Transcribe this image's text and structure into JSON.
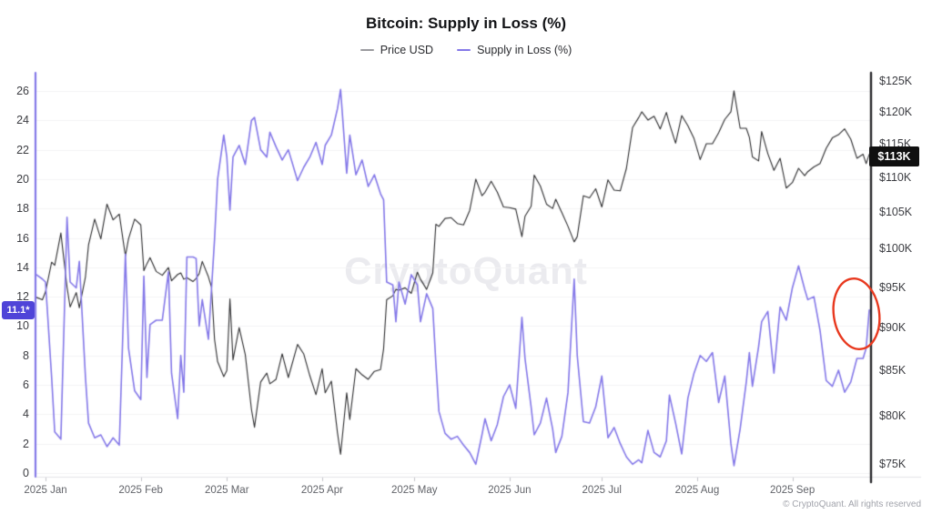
{
  "title": "Bitcoin: Supply in Loss (%)",
  "watermark": "CryptoQuant",
  "footer": "© CryptoQuant. All rights reserved",
  "legend": [
    {
      "label": "Price USD",
      "dash_color": "#9b9b9f"
    },
    {
      "label": "Supply in Loss (%)",
      "dash_color": "#8478e8"
    }
  ],
  "badges": {
    "supply_current": "11.1*",
    "price_current": "$113K",
    "supply_badge_bg": "#4f44d8",
    "price_badge_bg": "#101010"
  },
  "colors": {
    "price_line": "#2e2e30",
    "supply_line": "#8478e8",
    "left_axis_line": "#8478e8",
    "right_axis_line": "#29292c",
    "grid": "#f3f3f5",
    "bottom_axis": "#e3e3e7",
    "tick_mark": "#c4c4ca",
    "annotation_red": "#e8391f"
  },
  "chart_data": {
    "type": "line",
    "title": "Bitcoin: Supply in Loss (%)",
    "legend_position": "top",
    "grid": "horizontal",
    "left_axis": {
      "series": "Supply in Loss (%)",
      "scale": "linear",
      "ticks": [
        0,
        2,
        4,
        6,
        8,
        10,
        12,
        14,
        16,
        18,
        20,
        22,
        24,
        26
      ],
      "range": [
        0,
        27.2
      ]
    },
    "right_axis": {
      "series": "Price USD",
      "scale": "log",
      "ticks_usd_k": [
        75,
        80,
        85,
        90,
        95,
        100,
        105,
        110,
        115,
        120,
        125
      ],
      "tick_format": "$NK",
      "current_label": "$113K"
    },
    "x_ticks": [
      {
        "date": "2025-01-01",
        "label": "2025 Jan"
      },
      {
        "date": "2025-02-01",
        "label": "2025 Feb"
      },
      {
        "date": "2025-03-01",
        "label": "2025 Mar"
      },
      {
        "date": "2025-04-01",
        "label": "2025 Apr"
      },
      {
        "date": "2025-05-01",
        "label": "2025 May"
      },
      {
        "date": "2025-06-01",
        "label": "2025 Jun"
      },
      {
        "date": "2025-07-01",
        "label": "2025 Jul"
      },
      {
        "date": "2025-08-01",
        "label": "2025 Aug"
      },
      {
        "date": "2025-09-01",
        "label": "2025 Sep"
      }
    ],
    "series_meta": [
      {
        "name": "Price USD",
        "axis": "right",
        "color": "#2e2e30",
        "unit": "USD (K)"
      },
      {
        "name": "Supply in Loss (%)",
        "axis": "left",
        "color": "#8478e8",
        "unit": "%",
        "last_value_label": "11.1*"
      }
    ],
    "points_format": [
      "date",
      "price_usd_k",
      "supply_in_loss_pct"
    ],
    "points": [
      [
        "2024-12-29",
        93.7,
        13.5
      ],
      [
        "2024-12-31",
        93.4,
        13.2
      ],
      [
        "2025-01-01",
        94.4,
        13.0
      ],
      [
        "2025-01-03",
        98.2,
        6.5
      ],
      [
        "2025-01-04",
        97.8,
        2.8
      ],
      [
        "2025-01-06",
        102.1,
        2.3
      ],
      [
        "2025-01-08",
        95.0,
        17.4
      ],
      [
        "2025-01-09",
        92.5,
        13.0
      ],
      [
        "2025-01-11",
        94.3,
        12.6
      ],
      [
        "2025-01-12",
        92.4,
        14.4
      ],
      [
        "2025-01-14",
        96.3,
        6.5
      ],
      [
        "2025-01-15",
        100.5,
        3.4
      ],
      [
        "2025-01-17",
        104.0,
        2.4
      ],
      [
        "2025-01-19",
        101.3,
        2.6
      ],
      [
        "2025-01-21",
        106.1,
        1.8
      ],
      [
        "2025-01-23",
        103.9,
        2.4
      ],
      [
        "2025-01-25",
        104.7,
        1.9
      ],
      [
        "2025-01-27",
        99.0,
        14.9
      ],
      [
        "2025-01-28",
        101.3,
        8.5
      ],
      [
        "2025-01-30",
        104.0,
        5.6
      ],
      [
        "2025-02-01",
        103.2,
        5.0
      ],
      [
        "2025-02-02",
        97.1,
        13.4
      ],
      [
        "2025-02-03",
        98.0,
        6.5
      ],
      [
        "2025-02-04",
        98.8,
        10.1
      ],
      [
        "2025-02-06",
        97.0,
        10.4
      ],
      [
        "2025-02-08",
        96.5,
        10.4
      ],
      [
        "2025-02-10",
        97.5,
        13.7
      ],
      [
        "2025-02-11",
        95.8,
        6.8
      ],
      [
        "2025-02-13",
        96.6,
        3.7
      ],
      [
        "2025-02-14",
        96.8,
        8.0
      ],
      [
        "2025-02-15",
        96.0,
        5.5
      ],
      [
        "2025-02-16",
        96.2,
        14.7
      ],
      [
        "2025-02-18",
        95.7,
        14.7
      ],
      [
        "2025-02-19",
        96.1,
        14.6
      ],
      [
        "2025-02-20",
        96.7,
        10.0
      ],
      [
        "2025-02-21",
        98.3,
        11.8
      ],
      [
        "2025-02-23",
        96.3,
        9.1
      ],
      [
        "2025-02-24",
        95.0,
        12.5
      ],
      [
        "2025-02-25",
        88.6,
        15.9
      ],
      [
        "2025-02-26",
        86.0,
        20.0
      ],
      [
        "2025-02-28",
        84.3,
        23.0
      ],
      [
        "2025-03-01",
        85.0,
        21.5
      ],
      [
        "2025-03-02",
        93.5,
        17.9
      ],
      [
        "2025-03-03",
        86.2,
        21.5
      ],
      [
        "2025-03-05",
        90.0,
        22.3
      ],
      [
        "2025-03-07",
        86.8,
        21.0
      ],
      [
        "2025-03-09",
        80.7,
        24.0
      ],
      [
        "2025-03-10",
        78.8,
        24.2
      ],
      [
        "2025-03-12",
        83.7,
        22.0
      ],
      [
        "2025-03-14",
        84.7,
        21.5
      ],
      [
        "2025-03-15",
        83.5,
        23.2
      ],
      [
        "2025-03-17",
        84.0,
        22.2
      ],
      [
        "2025-03-19",
        86.9,
        21.3
      ],
      [
        "2025-03-21",
        84.2,
        22.0
      ],
      [
        "2025-03-24",
        88.0,
        19.9
      ],
      [
        "2025-03-26",
        86.9,
        20.8
      ],
      [
        "2025-03-28",
        84.4,
        21.5
      ],
      [
        "2025-03-30",
        82.3,
        22.5
      ],
      [
        "2025-04-01",
        85.2,
        21.0
      ],
      [
        "2025-04-02",
        82.5,
        22.3
      ],
      [
        "2025-04-04",
        83.8,
        23.0
      ],
      [
        "2025-04-06",
        78.2,
        24.8
      ],
      [
        "2025-04-07",
        76.0,
        26.1
      ],
      [
        "2025-04-09",
        82.5,
        20.4
      ],
      [
        "2025-04-10",
        79.6,
        23.0
      ],
      [
        "2025-04-12",
        85.2,
        20.3
      ],
      [
        "2025-04-14",
        84.5,
        21.3
      ],
      [
        "2025-04-16",
        84.0,
        19.5
      ],
      [
        "2025-04-18",
        84.9,
        20.3
      ],
      [
        "2025-04-20",
        85.1,
        19.0
      ],
      [
        "2025-04-21",
        87.5,
        18.6
      ],
      [
        "2025-04-22",
        93.4,
        13.0
      ],
      [
        "2025-04-24",
        93.9,
        12.8
      ],
      [
        "2025-04-25",
        94.7,
        10.3
      ],
      [
        "2025-04-26",
        94.6,
        13.0
      ],
      [
        "2025-04-28",
        94.9,
        11.5
      ],
      [
        "2025-04-30",
        94.2,
        13.5
      ],
      [
        "2025-05-02",
        96.9,
        12.8
      ],
      [
        "2025-05-03",
        96.0,
        10.3
      ],
      [
        "2025-05-05",
        94.7,
        12.2
      ],
      [
        "2025-05-07",
        96.8,
        11.2
      ],
      [
        "2025-05-08",
        103.3,
        7.5
      ],
      [
        "2025-05-09",
        103.0,
        4.2
      ],
      [
        "2025-05-11",
        104.1,
        2.7
      ],
      [
        "2025-05-13",
        104.2,
        2.3
      ],
      [
        "2025-05-15",
        103.4,
        2.5
      ],
      [
        "2025-05-17",
        103.2,
        1.9
      ],
      [
        "2025-05-19",
        105.2,
        1.4
      ],
      [
        "2025-05-21",
        109.7,
        0.6
      ],
      [
        "2025-05-23",
        107.3,
        2.6
      ],
      [
        "2025-05-24",
        107.8,
        3.7
      ],
      [
        "2025-05-26",
        109.4,
        2.2
      ],
      [
        "2025-05-28",
        107.8,
        3.3
      ],
      [
        "2025-05-30",
        105.7,
        5.2
      ],
      [
        "2025-06-01",
        105.6,
        6.0
      ],
      [
        "2025-06-03",
        105.4,
        4.4
      ],
      [
        "2025-06-05",
        101.6,
        10.6
      ],
      [
        "2025-06-06",
        104.4,
        7.8
      ],
      [
        "2025-06-08",
        105.8,
        4.5
      ],
      [
        "2025-06-09",
        110.3,
        2.6
      ],
      [
        "2025-06-11",
        108.7,
        3.4
      ],
      [
        "2025-06-13",
        106.1,
        5.1
      ],
      [
        "2025-06-15",
        105.5,
        3.0
      ],
      [
        "2025-06-16",
        106.8,
        1.4
      ],
      [
        "2025-06-18",
        104.9,
        2.5
      ],
      [
        "2025-06-20",
        103.0,
        5.5
      ],
      [
        "2025-06-22",
        100.9,
        13.2
      ],
      [
        "2025-06-23",
        101.6,
        8.0
      ],
      [
        "2025-06-25",
        107.3,
        3.5
      ],
      [
        "2025-06-27",
        107.0,
        3.4
      ],
      [
        "2025-06-29",
        108.3,
        4.5
      ],
      [
        "2025-07-01",
        105.7,
        6.6
      ],
      [
        "2025-07-03",
        109.6,
        2.4
      ],
      [
        "2025-07-05",
        108.1,
        3.1
      ],
      [
        "2025-07-07",
        108.0,
        2.0
      ],
      [
        "2025-07-09",
        111.3,
        1.1
      ],
      [
        "2025-07-11",
        117.5,
        0.6
      ],
      [
        "2025-07-13",
        119.1,
        0.9
      ],
      [
        "2025-07-14",
        120.0,
        0.7
      ],
      [
        "2025-07-16",
        118.7,
        2.9
      ],
      [
        "2025-07-18",
        119.3,
        1.4
      ],
      [
        "2025-07-20",
        117.3,
        1.1
      ],
      [
        "2025-07-22",
        119.9,
        2.2
      ],
      [
        "2025-07-23",
        118.1,
        5.3
      ],
      [
        "2025-07-25",
        115.1,
        3.4
      ],
      [
        "2025-07-27",
        119.4,
        1.3
      ],
      [
        "2025-07-29",
        117.8,
        5.1
      ],
      [
        "2025-07-31",
        115.8,
        6.8
      ],
      [
        "2025-08-02",
        112.6,
        8.0
      ],
      [
        "2025-08-04",
        115.0,
        7.6
      ],
      [
        "2025-08-06",
        115.0,
        8.2
      ],
      [
        "2025-08-08",
        116.7,
        4.8
      ],
      [
        "2025-08-10",
        118.8,
        6.6
      ],
      [
        "2025-08-12",
        120.0,
        2.0
      ],
      [
        "2025-08-13",
        123.4,
        0.5
      ],
      [
        "2025-08-15",
        117.4,
        3.0
      ],
      [
        "2025-08-17",
        117.4,
        6.2
      ],
      [
        "2025-08-18",
        116.0,
        8.2
      ],
      [
        "2025-08-19",
        113.0,
        5.9
      ],
      [
        "2025-08-21",
        112.4,
        8.6
      ],
      [
        "2025-08-22",
        116.9,
        10.3
      ],
      [
        "2025-08-24",
        113.5,
        11.0
      ],
      [
        "2025-08-26",
        111.0,
        6.8
      ],
      [
        "2025-08-28",
        112.8,
        11.3
      ],
      [
        "2025-08-30",
        108.4,
        10.4
      ],
      [
        "2025-09-01",
        109.2,
        12.6
      ],
      [
        "2025-09-03",
        111.3,
        14.1
      ],
      [
        "2025-09-05",
        110.2,
        12.5
      ],
      [
        "2025-09-06",
        110.8,
        11.8
      ],
      [
        "2025-09-08",
        111.5,
        12.0
      ],
      [
        "2025-09-10",
        112.0,
        9.7
      ],
      [
        "2025-09-12",
        114.3,
        6.3
      ],
      [
        "2025-09-14",
        115.9,
        5.9
      ],
      [
        "2025-09-16",
        116.4,
        7.0
      ],
      [
        "2025-09-18",
        117.3,
        5.5
      ],
      [
        "2025-09-20",
        115.7,
        6.2
      ],
      [
        "2025-09-22",
        112.8,
        7.8
      ],
      [
        "2025-09-24",
        113.4,
        7.8
      ],
      [
        "2025-09-25",
        112.0,
        8.5
      ],
      [
        "2025-09-26",
        113.4,
        11.1
      ]
    ],
    "annotation": {
      "shape": "ellipse",
      "cx": 941,
      "cy": 345,
      "rx": 25,
      "ry": 39,
      "rotate_deg": -8,
      "color": "#e8391f",
      "meaning": "highlights final uptick of Supply in Loss"
    }
  }
}
